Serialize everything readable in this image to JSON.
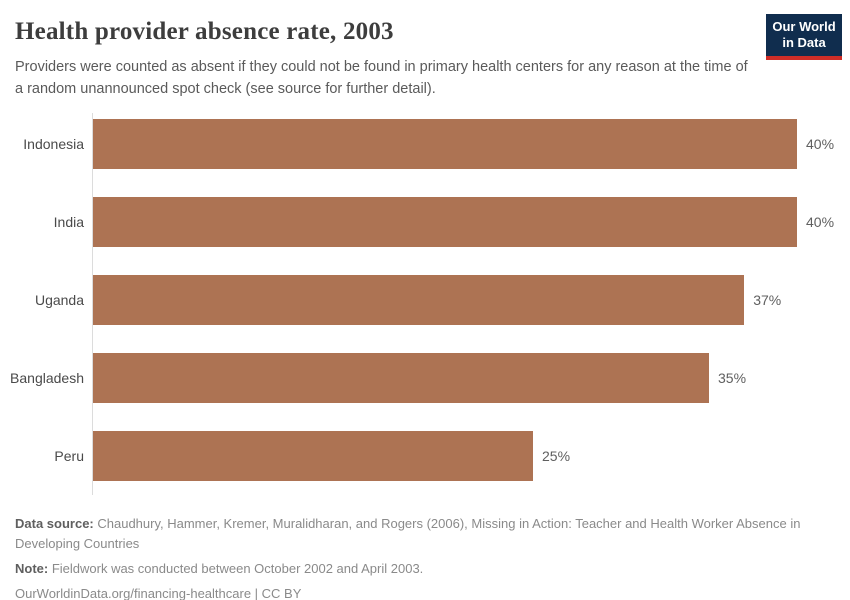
{
  "header": {
    "title": "Health provider absence rate, 2003",
    "subtitle": "Providers were counted as absent if they could not be found in primary health centers for any reason at the time of a random unannounced spot check (see source for further detail).",
    "logo": {
      "line1": "Our World",
      "line2": "in Data",
      "background_color": "#102d4e",
      "accent_color": "#cf2d27",
      "text_color": "#ffffff"
    }
  },
  "chart_data": {
    "type": "bar",
    "orientation": "horizontal",
    "title": "Health provider absence rate, 2003",
    "categories": [
      "Indonesia",
      "India",
      "Uganda",
      "Bangladesh",
      "Peru"
    ],
    "values": [
      40,
      40,
      37,
      35,
      25
    ],
    "value_labels": [
      "40%",
      "40%",
      "37%",
      "35%",
      "25%"
    ],
    "unit": "%",
    "xlim": [
      0,
      43
    ],
    "grid": false,
    "legend": "none",
    "bar_color": "#ad7353",
    "axis_color": "#dcdcdc"
  },
  "footer": {
    "datasource_label": "Data source:",
    "datasource_text": " Chaudhury, Hammer, Kremer, Muralidharan, and Rogers (2006), Missing in Action: Teacher and Health Worker Absence in Developing Countries",
    "note_label": "Note:",
    "note_text": " Fieldwork was conducted between October 2002 and April 2003.",
    "url": "OurWorldinData.org/financing-healthcare | CC BY"
  }
}
